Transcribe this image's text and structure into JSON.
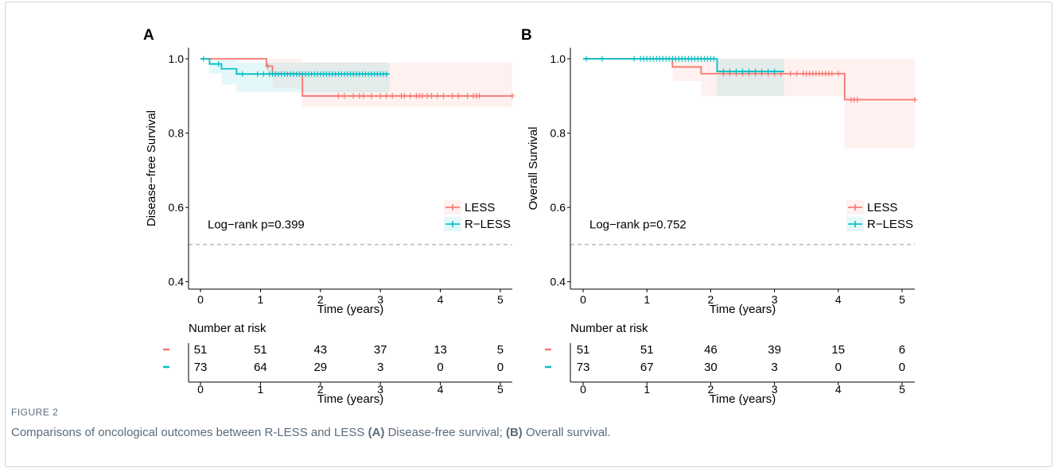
{
  "colors": {
    "less": "#F8766D",
    "rless": "#00BFC4",
    "axis": "#000000",
    "ref_line": "#999999"
  },
  "figure": {
    "label": "FIGURE 2",
    "caption_main": "Comparisons of oncological outcomes between R-LESS and LESS ",
    "caption_a_tag": "(A)",
    "caption_a_text": " Disease-free survival; ",
    "caption_b_tag": "(B)",
    "caption_b_text": " Overall survival."
  },
  "chart_data": [
    {
      "type": "line",
      "panel_label": "A",
      "ylabel": "Disease−free Survival",
      "xlabel": "Time (years)",
      "xlim": [
        -0.2,
        5.2
      ],
      "ylim": [
        0.38,
        1.03
      ],
      "xticks": [
        "0",
        "1",
        "2",
        "3",
        "4",
        "5"
      ],
      "yticks": [
        "0.4",
        "0.6",
        "0.8",
        "1.0"
      ],
      "annotation": "Log−rank  p=0.399",
      "ref_line_y": 0.5,
      "legend_position": "right",
      "series": [
        {
          "name": "LESS",
          "color": "#F8766D",
          "steps_x": [
            0,
            1.1,
            1.2,
            1.7,
            5.2
          ],
          "steps_y": [
            1.0,
            0.98,
            0.96,
            0.9,
            0.9
          ],
          "ci_upper": [
            1.0,
            1.0,
            1.0,
            0.99,
            0.99
          ],
          "ci_lower": [
            1.0,
            0.96,
            0.92,
            0.87,
            0.82
          ],
          "censor_x": [
            1.12,
            2.3,
            2.4,
            2.55,
            2.65,
            2.72,
            2.85,
            3.0,
            3.1,
            3.2,
            3.35,
            3.4,
            3.5,
            3.6,
            3.65,
            3.7,
            3.78,
            3.85,
            3.95,
            4.05,
            4.2,
            4.3,
            4.45,
            4.55,
            4.6,
            4.65,
            5.2
          ]
        },
        {
          "name": "R−LESS",
          "color": "#00BFC4",
          "steps_x": [
            0,
            0.15,
            0.35,
            0.6,
            3.15
          ],
          "steps_y": [
            1.0,
            0.986,
            0.973,
            0.959,
            0.959
          ],
          "ci_upper": [
            1.0,
            1.0,
            1.0,
            0.99,
            0.99
          ],
          "ci_lower": [
            1.0,
            0.96,
            0.93,
            0.91,
            0.91
          ],
          "censor_x": [
            0.05,
            0.3,
            0.7,
            0.95,
            1.05,
            1.15,
            1.2,
            1.25,
            1.3,
            1.35,
            1.4,
            1.45,
            1.5,
            1.55,
            1.6,
            1.65,
            1.7,
            1.75,
            1.8,
            1.85,
            1.9,
            1.95,
            2.0,
            2.05,
            2.1,
            2.15,
            2.2,
            2.25,
            2.3,
            2.35,
            2.4,
            2.45,
            2.5,
            2.55,
            2.6,
            2.65,
            2.7,
            2.75,
            2.8,
            2.85,
            2.9,
            2.95,
            3.0,
            3.05,
            3.1
          ]
        }
      ],
      "risk_table": {
        "title": "Number at risk",
        "xlabel": "Time (years)",
        "times": [
          "0",
          "1",
          "2",
          "3",
          "4",
          "5"
        ],
        "rows": [
          {
            "series": "LESS",
            "values": [
              "51",
              "51",
              "43",
              "37",
              "13",
              "5"
            ]
          },
          {
            "series": "R−LESS",
            "values": [
              "73",
              "64",
              "29",
              "3",
              "0",
              "0"
            ]
          }
        ]
      }
    },
    {
      "type": "line",
      "panel_label": "B",
      "ylabel": "Overall Survival",
      "xlabel": "Time (years)",
      "xlim": [
        -0.2,
        5.2
      ],
      "ylim": [
        0.38,
        1.03
      ],
      "xticks": [
        "0",
        "1",
        "2",
        "3",
        "4",
        "5"
      ],
      "yticks": [
        "0.4",
        "0.6",
        "0.8",
        "1.0"
      ],
      "annotation": "Log−rank  p=0.752",
      "ref_line_y": 0.5,
      "legend_position": "right",
      "series": [
        {
          "name": "LESS",
          "color": "#F8766D",
          "steps_x": [
            0,
            1.4,
            1.85,
            4.1,
            5.2
          ],
          "steps_y": [
            1.0,
            0.978,
            0.96,
            0.89,
            0.89
          ],
          "ci_upper": [
            1.0,
            1.0,
            1.0,
            1.0,
            1.0
          ],
          "ci_lower": [
            1.0,
            0.94,
            0.9,
            0.76,
            0.76
          ],
          "censor_x": [
            2.2,
            2.3,
            2.4,
            2.5,
            2.6,
            2.7,
            2.8,
            2.9,
            3.0,
            3.1,
            3.25,
            3.35,
            3.45,
            3.5,
            3.55,
            3.6,
            3.65,
            3.7,
            3.75,
            3.8,
            3.85,
            3.9,
            4.0,
            4.2,
            4.25,
            4.3,
            5.2
          ]
        },
        {
          "name": "R−LESS",
          "color": "#00BFC4",
          "steps_x": [
            0,
            2.1,
            3.15
          ],
          "steps_y": [
            1.0,
            0.966,
            0.966
          ],
          "ci_upper": [
            1.0,
            1.0,
            1.0
          ],
          "ci_lower": [
            1.0,
            0.9,
            0.9
          ],
          "censor_x": [
            0.05,
            0.3,
            0.8,
            0.9,
            0.95,
            1.0,
            1.05,
            1.1,
            1.15,
            1.2,
            1.25,
            1.3,
            1.35,
            1.4,
            1.45,
            1.5,
            1.55,
            1.6,
            1.65,
            1.7,
            1.75,
            1.8,
            1.85,
            1.9,
            1.95,
            2.0,
            2.05,
            2.2,
            2.3,
            2.4,
            2.5,
            2.6,
            2.7,
            2.8,
            2.9,
            3.0
          ]
        }
      ],
      "risk_table": {
        "title": "Number at risk",
        "xlabel": "Time (years)",
        "times": [
          "0",
          "1",
          "2",
          "3",
          "4",
          "5"
        ],
        "rows": [
          {
            "series": "LESS",
            "values": [
              "51",
              "51",
              "46",
              "39",
              "15",
              "6"
            ]
          },
          {
            "series": "R−LESS",
            "values": [
              "73",
              "67",
              "30",
              "3",
              "0",
              "0"
            ]
          }
        ]
      }
    }
  ]
}
